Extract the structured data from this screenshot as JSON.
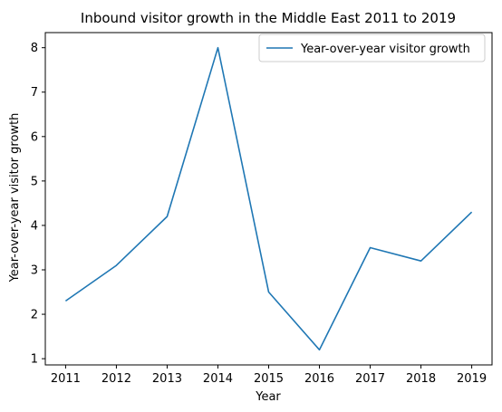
{
  "chart_data": {
    "type": "line",
    "title": "Inbound visitor growth in the Middle East 2011 to 2019",
    "xlabel": "Year",
    "ylabel": "Year-over-year visitor growth",
    "x": [
      "2011",
      "2012",
      "2013",
      "2014",
      "2015",
      "2016",
      "2017",
      "2018",
      "2019"
    ],
    "series": [
      {
        "name": "Year-over-year visitor growth",
        "values": [
          2.3,
          3.1,
          4.2,
          8.0,
          2.5,
          1.2,
          3.5,
          3.2,
          4.3
        ],
        "color": "#1f77b4"
      }
    ],
    "yticks": [
      1,
      2,
      3,
      4,
      5,
      6,
      7,
      8
    ],
    "ylim": [
      0.86,
      8.34
    ],
    "xlim": [
      2010.6,
      2019.4
    ],
    "grid": false,
    "legend": "top-right"
  }
}
